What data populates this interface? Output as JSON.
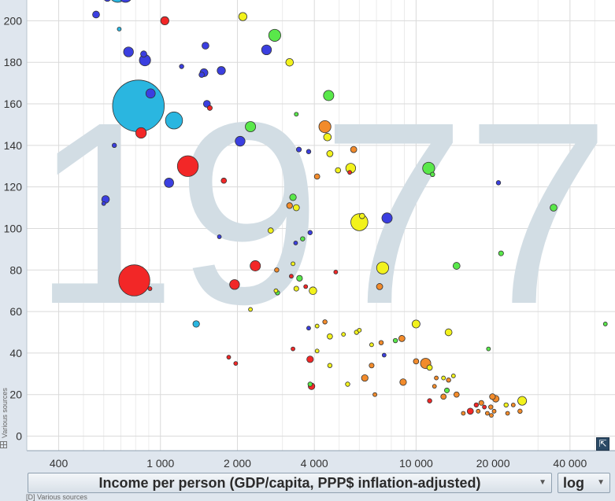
{
  "chart_data": {
    "type": "scatter",
    "year_watermark": "1977",
    "x_scale": "log",
    "xlim": [
      300,
      60000
    ],
    "ylim": [
      -7,
      210
    ],
    "x_ticks": [
      {
        "value": 400,
        "label": "400"
      },
      {
        "value": 1000,
        "label": "1 000"
      },
      {
        "value": 2000,
        "label": "2 000"
      },
      {
        "value": 4000,
        "label": "4 000"
      },
      {
        "value": 10000,
        "label": "10 000"
      },
      {
        "value": 20000,
        "label": "20 000"
      },
      {
        "value": 40000,
        "label": "40 000"
      }
    ],
    "x_minor_ticks": [
      300,
      500,
      600,
      700,
      800,
      900,
      3000,
      5000,
      6000,
      7000,
      8000,
      9000,
      30000,
      50000
    ],
    "y_ticks": [
      0,
      20,
      40,
      60,
      80,
      100,
      120,
      140,
      160,
      180,
      200
    ],
    "xlabel": "Income per person (GDP/capita, PPP$ inflation-adjusted)",
    "scale_label": "log",
    "source_text": "Various sources",
    "bottom_source_text": "[D] Various sources",
    "colors": {
      "cyan": "#2ab6e0",
      "blue": "#3b3fe0",
      "red": "#f22727",
      "green": "#59e84a",
      "yellow": "#f2f21c",
      "orange": "#f28b2b"
    },
    "points": [
      {
        "x": 680,
        "y": 213,
        "s": 60,
        "c": "cyan"
      },
      {
        "x": 730,
        "y": 212,
        "s": 35,
        "c": "blue"
      },
      {
        "x": 620,
        "y": 211,
        "s": 10,
        "c": "blue"
      },
      {
        "x": 560,
        "y": 203,
        "s": 10,
        "c": "blue"
      },
      {
        "x": 1040,
        "y": 200,
        "s": 14,
        "c": "red"
      },
      {
        "x": 2100,
        "y": 202,
        "s": 14,
        "c": "yellow"
      },
      {
        "x": 690,
        "y": 196,
        "s": 3,
        "c": "cyan"
      },
      {
        "x": 2800,
        "y": 193,
        "s": 30,
        "c": "green"
      },
      {
        "x": 1500,
        "y": 188,
        "s": 10,
        "c": "blue"
      },
      {
        "x": 2600,
        "y": 186,
        "s": 20,
        "c": "blue"
      },
      {
        "x": 750,
        "y": 185,
        "s": 20,
        "c": "blue"
      },
      {
        "x": 860,
        "y": 184,
        "s": 8,
        "c": "blue"
      },
      {
        "x": 870,
        "y": 181,
        "s": 26,
        "c": "blue"
      },
      {
        "x": 3200,
        "y": 180,
        "s": 12,
        "c": "yellow"
      },
      {
        "x": 1210,
        "y": 178,
        "s": 4,
        "c": "blue"
      },
      {
        "x": 1730,
        "y": 176,
        "s": 14,
        "c": "blue"
      },
      {
        "x": 1480,
        "y": 175,
        "s": 13,
        "c": "blue"
      },
      {
        "x": 1450,
        "y": 174,
        "s": 6,
        "c": "blue"
      },
      {
        "x": 915,
        "y": 165,
        "s": 18,
        "c": "blue"
      },
      {
        "x": 4550,
        "y": 164,
        "s": 22,
        "c": "green"
      },
      {
        "x": 1520,
        "y": 160,
        "s": 10,
        "c": "blue"
      },
      {
        "x": 820,
        "y": 159,
        "s": 550,
        "c": "cyan"
      },
      {
        "x": 1560,
        "y": 158,
        "s": 5,
        "c": "red"
      },
      {
        "x": 3400,
        "y": 155,
        "s": 3,
        "c": "green"
      },
      {
        "x": 1130,
        "y": 152,
        "s": 60,
        "c": "cyan"
      },
      {
        "x": 2250,
        "y": 149,
        "s": 22,
        "c": "green"
      },
      {
        "x": 4400,
        "y": 149,
        "s": 30,
        "c": "orange"
      },
      {
        "x": 840,
        "y": 146,
        "s": 23,
        "c": "red"
      },
      {
        "x": 4500,
        "y": 144,
        "s": 12,
        "c": "yellow"
      },
      {
        "x": 2050,
        "y": 142,
        "s": 20,
        "c": "blue"
      },
      {
        "x": 660,
        "y": 140,
        "s": 4,
        "c": "blue"
      },
      {
        "x": 5700,
        "y": 138,
        "s": 8,
        "c": "orange"
      },
      {
        "x": 3480,
        "y": 138,
        "s": 5,
        "c": "blue"
      },
      {
        "x": 3800,
        "y": 137,
        "s": 4,
        "c": "blue"
      },
      {
        "x": 4600,
        "y": 136,
        "s": 8,
        "c": "yellow"
      },
      {
        "x": 1280,
        "y": 130,
        "s": 90,
        "c": "red"
      },
      {
        "x": 11200,
        "y": 129,
        "s": 30,
        "c": "green"
      },
      {
        "x": 5550,
        "y": 129,
        "s": 20,
        "c": "yellow"
      },
      {
        "x": 4950,
        "y": 128,
        "s": 6,
        "c": "yellow"
      },
      {
        "x": 5500,
        "y": 127,
        "s": 3,
        "c": "red"
      },
      {
        "x": 11600,
        "y": 126,
        "s": 4,
        "c": "green"
      },
      {
        "x": 4100,
        "y": 125,
        "s": 6,
        "c": "orange"
      },
      {
        "x": 1080,
        "y": 122,
        "s": 18,
        "c": "blue"
      },
      {
        "x": 1770,
        "y": 123,
        "s": 6,
        "c": "red"
      },
      {
        "x": 21000,
        "y": 122,
        "s": 4,
        "c": "blue"
      },
      {
        "x": 3300,
        "y": 115,
        "s": 9,
        "c": "green"
      },
      {
        "x": 610,
        "y": 114,
        "s": 12,
        "c": "blue"
      },
      {
        "x": 600,
        "y": 112,
        "s": 3,
        "c": "blue"
      },
      {
        "x": 3200,
        "y": 111,
        "s": 7,
        "c": "orange"
      },
      {
        "x": 3400,
        "y": 110,
        "s": 8,
        "c": "yellow"
      },
      {
        "x": 34500,
        "y": 110,
        "s": 10,
        "c": "green"
      },
      {
        "x": 6150,
        "y": 106,
        "s": 6,
        "c": "yellow"
      },
      {
        "x": 7700,
        "y": 105,
        "s": 22,
        "c": "blue"
      },
      {
        "x": 6000,
        "y": 103,
        "s": 60,
        "c": "yellow"
      },
      {
        "x": 2700,
        "y": 99,
        "s": 6,
        "c": "yellow"
      },
      {
        "x": 3850,
        "y": 98,
        "s": 4,
        "c": "blue"
      },
      {
        "x": 1700,
        "y": 96,
        "s": 3,
        "c": "blue"
      },
      {
        "x": 3600,
        "y": 95,
        "s": 4,
        "c": "green"
      },
      {
        "x": 3380,
        "y": 93,
        "s": 3,
        "c": "blue"
      },
      {
        "x": 21500,
        "y": 88,
        "s": 5,
        "c": "green"
      },
      {
        "x": 2350,
        "y": 82,
        "s": 22,
        "c": "red"
      },
      {
        "x": 7400,
        "y": 81,
        "s": 30,
        "c": "yellow"
      },
      {
        "x": 14400,
        "y": 82,
        "s": 10,
        "c": "green"
      },
      {
        "x": 3300,
        "y": 83,
        "s": 3,
        "c": "yellow"
      },
      {
        "x": 2850,
        "y": 80,
        "s": 4,
        "c": "orange"
      },
      {
        "x": 4850,
        "y": 79,
        "s": 3,
        "c": "red"
      },
      {
        "x": 3250,
        "y": 77,
        "s": 3,
        "c": "red"
      },
      {
        "x": 3500,
        "y": 76,
        "s": 7,
        "c": "green"
      },
      {
        "x": 790,
        "y": 75,
        "s": 200,
        "c": "red"
      },
      {
        "x": 1950,
        "y": 73,
        "s": 20,
        "c": "red"
      },
      {
        "x": 3700,
        "y": 72,
        "s": 3,
        "c": "red"
      },
      {
        "x": 7200,
        "y": 72,
        "s": 8,
        "c": "orange"
      },
      {
        "x": 910,
        "y": 71,
        "s": 3,
        "c": "red"
      },
      {
        "x": 3400,
        "y": 71,
        "s": 5,
        "c": "yellow"
      },
      {
        "x": 3950,
        "y": 70,
        "s": 12,
        "c": "yellow"
      },
      {
        "x": 2830,
        "y": 70,
        "s": 3,
        "c": "yellow"
      },
      {
        "x": 2870,
        "y": 69,
        "s": 4,
        "c": "green"
      },
      {
        "x": 2250,
        "y": 61,
        "s": 3,
        "c": "yellow"
      },
      {
        "x": 1380,
        "y": 54,
        "s": 9,
        "c": "cyan"
      },
      {
        "x": 4400,
        "y": 55,
        "s": 4,
        "c": "orange"
      },
      {
        "x": 10000,
        "y": 54,
        "s": 13,
        "c": "yellow"
      },
      {
        "x": 55000,
        "y": 54,
        "s": 3,
        "c": "green"
      },
      {
        "x": 4100,
        "y": 53,
        "s": 3,
        "c": "yellow"
      },
      {
        "x": 3800,
        "y": 52,
        "s": 3,
        "c": "blue"
      },
      {
        "x": 13400,
        "y": 50,
        "s": 10,
        "c": "yellow"
      },
      {
        "x": 6000,
        "y": 51,
        "s": 3,
        "c": "yellow"
      },
      {
        "x": 5850,
        "y": 50,
        "s": 4,
        "c": "yellow"
      },
      {
        "x": 5200,
        "y": 49,
        "s": 3,
        "c": "yellow"
      },
      {
        "x": 4600,
        "y": 48,
        "s": 6,
        "c": "yellow"
      },
      {
        "x": 8800,
        "y": 47,
        "s": 8,
        "c": "orange"
      },
      {
        "x": 8300,
        "y": 46,
        "s": 4,
        "c": "green"
      },
      {
        "x": 7300,
        "y": 45,
        "s": 4,
        "c": "orange"
      },
      {
        "x": 6700,
        "y": 44,
        "s": 3,
        "c": "yellow"
      },
      {
        "x": 3300,
        "y": 42,
        "s": 3,
        "c": "red"
      },
      {
        "x": 19200,
        "y": 42,
        "s": 3,
        "c": "green"
      },
      {
        "x": 4100,
        "y": 41,
        "s": 3,
        "c": "yellow"
      },
      {
        "x": 7500,
        "y": 39,
        "s": 3,
        "c": "blue"
      },
      {
        "x": 1850,
        "y": 38,
        "s": 3,
        "c": "red"
      },
      {
        "x": 3850,
        "y": 37,
        "s": 9,
        "c": "red"
      },
      {
        "x": 10000,
        "y": 36,
        "s": 6,
        "c": "orange"
      },
      {
        "x": 10900,
        "y": 35,
        "s": 22,
        "c": "orange"
      },
      {
        "x": 4600,
        "y": 34,
        "s": 4,
        "c": "yellow"
      },
      {
        "x": 6700,
        "y": 34,
        "s": 5,
        "c": "orange"
      },
      {
        "x": 1970,
        "y": 35,
        "s": 3,
        "c": "red"
      },
      {
        "x": 11300,
        "y": 33,
        "s": 6,
        "c": "yellow"
      },
      {
        "x": 14000,
        "y": 29,
        "s": 3,
        "c": "yellow"
      },
      {
        "x": 12000,
        "y": 28,
        "s": 3,
        "c": "orange"
      },
      {
        "x": 12800,
        "y": 28,
        "s": 3,
        "c": "yellow"
      },
      {
        "x": 13400,
        "y": 27,
        "s": 4,
        "c": "orange"
      },
      {
        "x": 6300,
        "y": 28,
        "s": 9,
        "c": "orange"
      },
      {
        "x": 8900,
        "y": 26,
        "s": 9,
        "c": "orange"
      },
      {
        "x": 5400,
        "y": 25,
        "s": 4,
        "c": "yellow"
      },
      {
        "x": 3850,
        "y": 25,
        "s": 4,
        "c": "green"
      },
      {
        "x": 3900,
        "y": 24,
        "s": 9,
        "c": "red"
      },
      {
        "x": 11800,
        "y": 24,
        "s": 3,
        "c": "orange"
      },
      {
        "x": 13200,
        "y": 22,
        "s": 5,
        "c": "green"
      },
      {
        "x": 14400,
        "y": 20,
        "s": 6,
        "c": "orange"
      },
      {
        "x": 12800,
        "y": 19,
        "s": 6,
        "c": "orange"
      },
      {
        "x": 19900,
        "y": 19,
        "s": 7,
        "c": "orange"
      },
      {
        "x": 20500,
        "y": 18,
        "s": 9,
        "c": "orange"
      },
      {
        "x": 6900,
        "y": 20,
        "s": 3,
        "c": "orange"
      },
      {
        "x": 11300,
        "y": 17,
        "s": 4,
        "c": "red"
      },
      {
        "x": 26000,
        "y": 17,
        "s": 16,
        "c": "yellow"
      },
      {
        "x": 18000,
        "y": 16,
        "s": 5,
        "c": "orange"
      },
      {
        "x": 17200,
        "y": 15,
        "s": 4,
        "c": "red"
      },
      {
        "x": 22500,
        "y": 15,
        "s": 4,
        "c": "yellow"
      },
      {
        "x": 24000,
        "y": 15,
        "s": 3,
        "c": "orange"
      },
      {
        "x": 19600,
        "y": 14,
        "s": 4,
        "c": "orange"
      },
      {
        "x": 18500,
        "y": 14,
        "s": 3,
        "c": "red"
      },
      {
        "x": 16300,
        "y": 12,
        "s": 8,
        "c": "red"
      },
      {
        "x": 20200,
        "y": 12,
        "s": 3,
        "c": "orange"
      },
      {
        "x": 25500,
        "y": 12,
        "s": 4,
        "c": "orange"
      },
      {
        "x": 15300,
        "y": 11,
        "s": 3,
        "c": "orange"
      },
      {
        "x": 22800,
        "y": 11,
        "s": 3,
        "c": "orange"
      },
      {
        "x": 17500,
        "y": 12,
        "s": 3,
        "c": "orange"
      },
      {
        "x": 19000,
        "y": 11,
        "s": 3,
        "c": "orange"
      },
      {
        "x": 19700,
        "y": 10,
        "s": 3,
        "c": "orange"
      }
    ]
  }
}
